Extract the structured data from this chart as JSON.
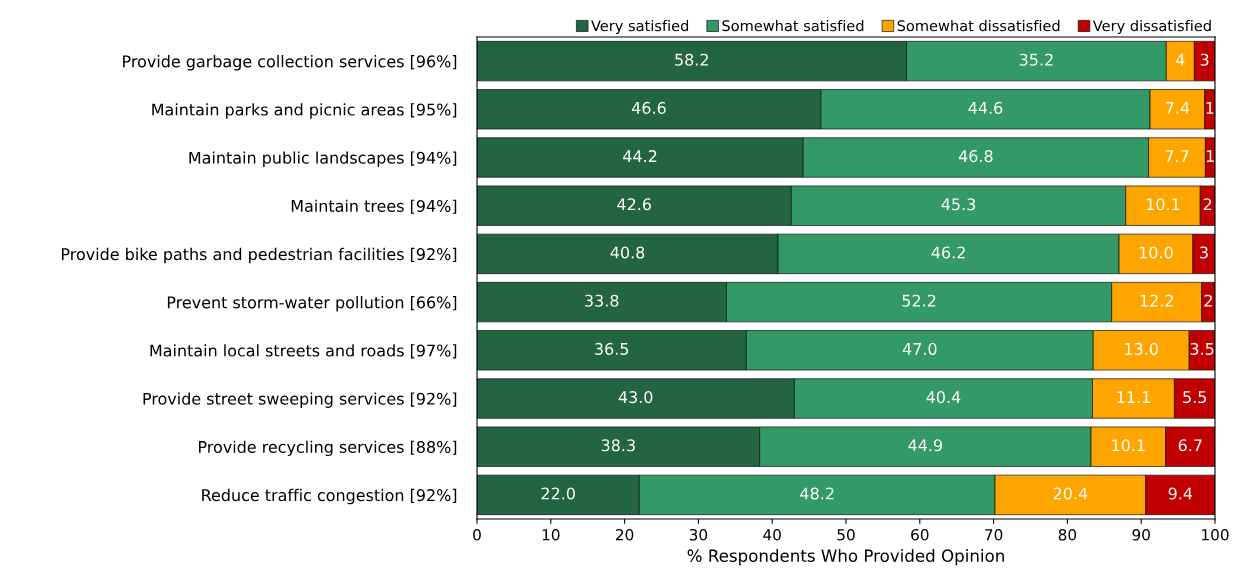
{
  "chart_data": {
    "type": "bar",
    "orientation": "horizontal",
    "stacked": true,
    "xlabel": "% Respondents Who Provided Opinion",
    "categories": [
      "Provide garbage collection services [96%]",
      "Maintain parks and picnic areas [95%]",
      "Maintain public landscapes [94%]",
      "Maintain trees [94%]",
      "Provide bike paths and pedestrian facilities [92%]",
      "Prevent storm-water pollution [66%]",
      "Maintain local streets and roads [97%]",
      "Provide street sweeping services [92%]",
      "Provide recycling services [88%]",
      "Reduce traffic congestion [92%]"
    ],
    "series": [
      {
        "name": "Very satisfied",
        "color": "#236542",
        "values": [
          58.2,
          46.6,
          44.2,
          42.6,
          40.8,
          33.8,
          36.5,
          43.0,
          38.3,
          22.0
        ],
        "value_labels": [
          "58.2",
          "46.6",
          "44.2",
          "42.6",
          "40.8",
          "33.8",
          "36.5",
          "43.0",
          "38.3",
          "22.0"
        ]
      },
      {
        "name": "Somewhat satisfied",
        "color": "#339966",
        "values": [
          35.2,
          44.6,
          46.8,
          45.3,
          46.2,
          52.2,
          47.0,
          40.4,
          44.9,
          48.2
        ],
        "value_labels": [
          "35.2",
          "44.6",
          "46.8",
          "45.3",
          "46.2",
          "52.2",
          "47.0",
          "40.4",
          "44.9",
          "48.2"
        ]
      },
      {
        "name": "Somewhat dissatisfied",
        "color": "#ffa500",
        "values": [
          3.8,
          7.4,
          7.7,
          10.1,
          10.0,
          12.2,
          13.0,
          11.1,
          10.1,
          20.4
        ],
        "value_labels": [
          "4",
          "7.4",
          "7.7",
          "10.1",
          "10.0",
          "12.2",
          "13.0",
          "11.1",
          "10.1",
          "20.4"
        ]
      },
      {
        "name": "Very dissatisfied",
        "color": "#c00000",
        "values": [
          2.8,
          1.4,
          1.3,
          2.0,
          3.0,
          1.8,
          3.5,
          5.5,
          6.7,
          9.4
        ],
        "value_labels": [
          "3",
          "1",
          "1",
          "2",
          "3",
          "2",
          "3.5",
          "5.5",
          "6.7",
          "9.4"
        ]
      }
    ],
    "xlim": [
      0,
      100
    ],
    "xticks": [
      0,
      10,
      20,
      30,
      40,
      50,
      60,
      70,
      80,
      90,
      100
    ],
    "grid": false,
    "legend": "top right"
  }
}
